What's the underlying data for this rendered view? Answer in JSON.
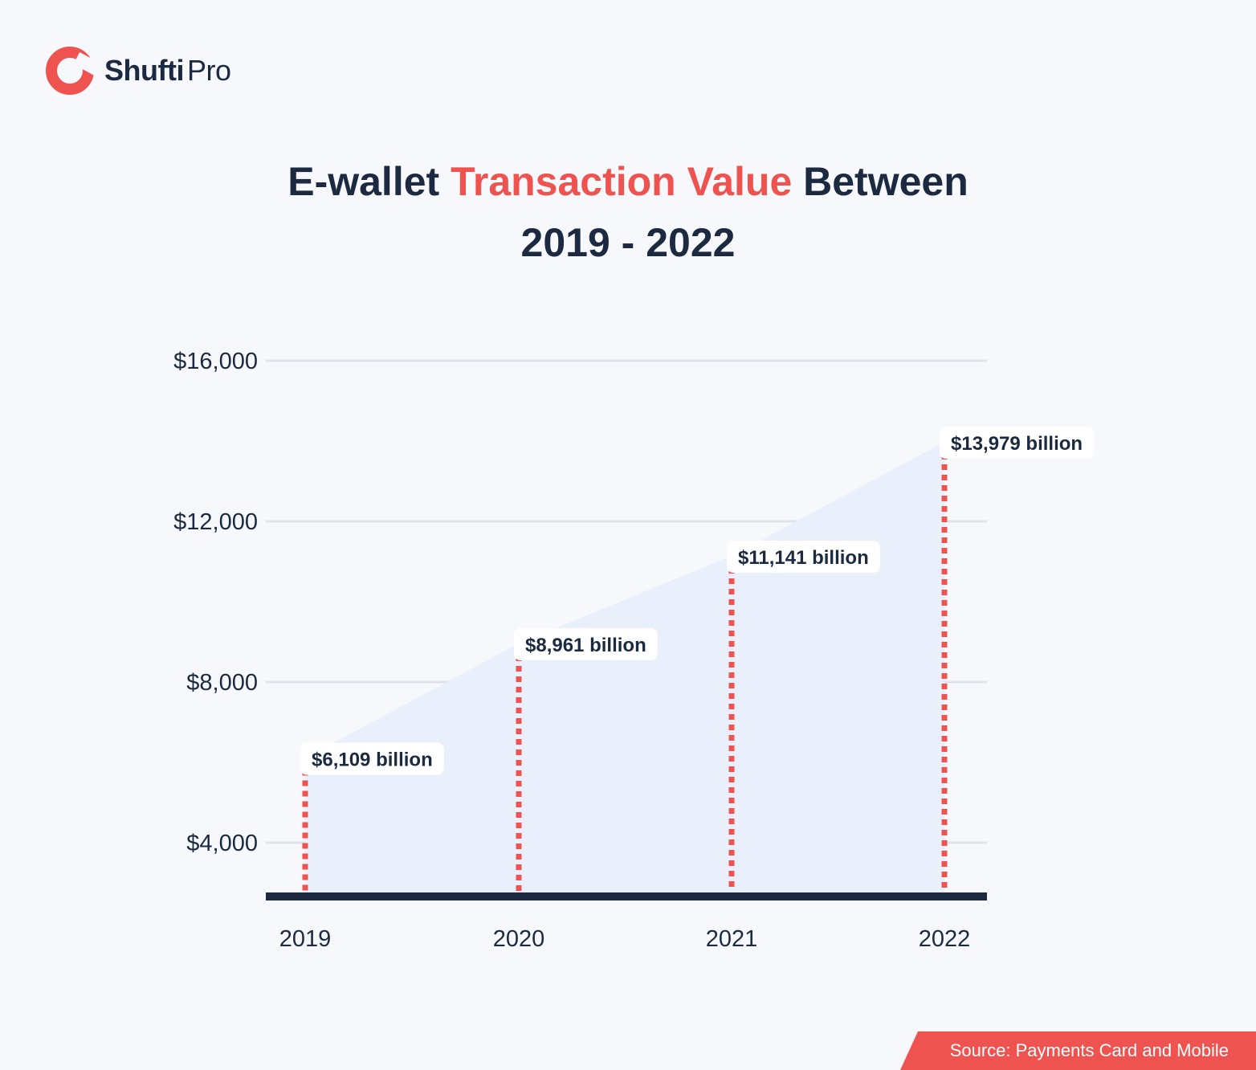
{
  "brand": {
    "name_bold": "Shufti",
    "name_light": "Pro",
    "color": "#ef5350"
  },
  "title": {
    "part1": "E-wallet ",
    "accent": "Transaction Value",
    "part2": " Between",
    "line2": "2019 - 2022"
  },
  "source": "Source: Payments Card and Mobile",
  "colors": {
    "accent": "#ef5350",
    "text": "#1b2a41",
    "area": "#e9f0fb",
    "grid": "#dde3ea"
  },
  "chart_data": {
    "type": "area",
    "categories": [
      "2019",
      "2020",
      "2021",
      "2022"
    ],
    "values": [
      6109,
      8961,
      11141,
      13979
    ],
    "data_labels": [
      "$6,109 billion",
      "$8,961 billion",
      "$11,141 billion",
      "$13,979 billion"
    ],
    "yticks": [
      4000,
      8000,
      12000,
      16000
    ],
    "ytick_labels": [
      "$4,000",
      "$8,000",
      "$12,000",
      "$16,000"
    ],
    "ylim": [
      2700,
      16000
    ],
    "grid": true,
    "drop_lines": "dashed"
  }
}
